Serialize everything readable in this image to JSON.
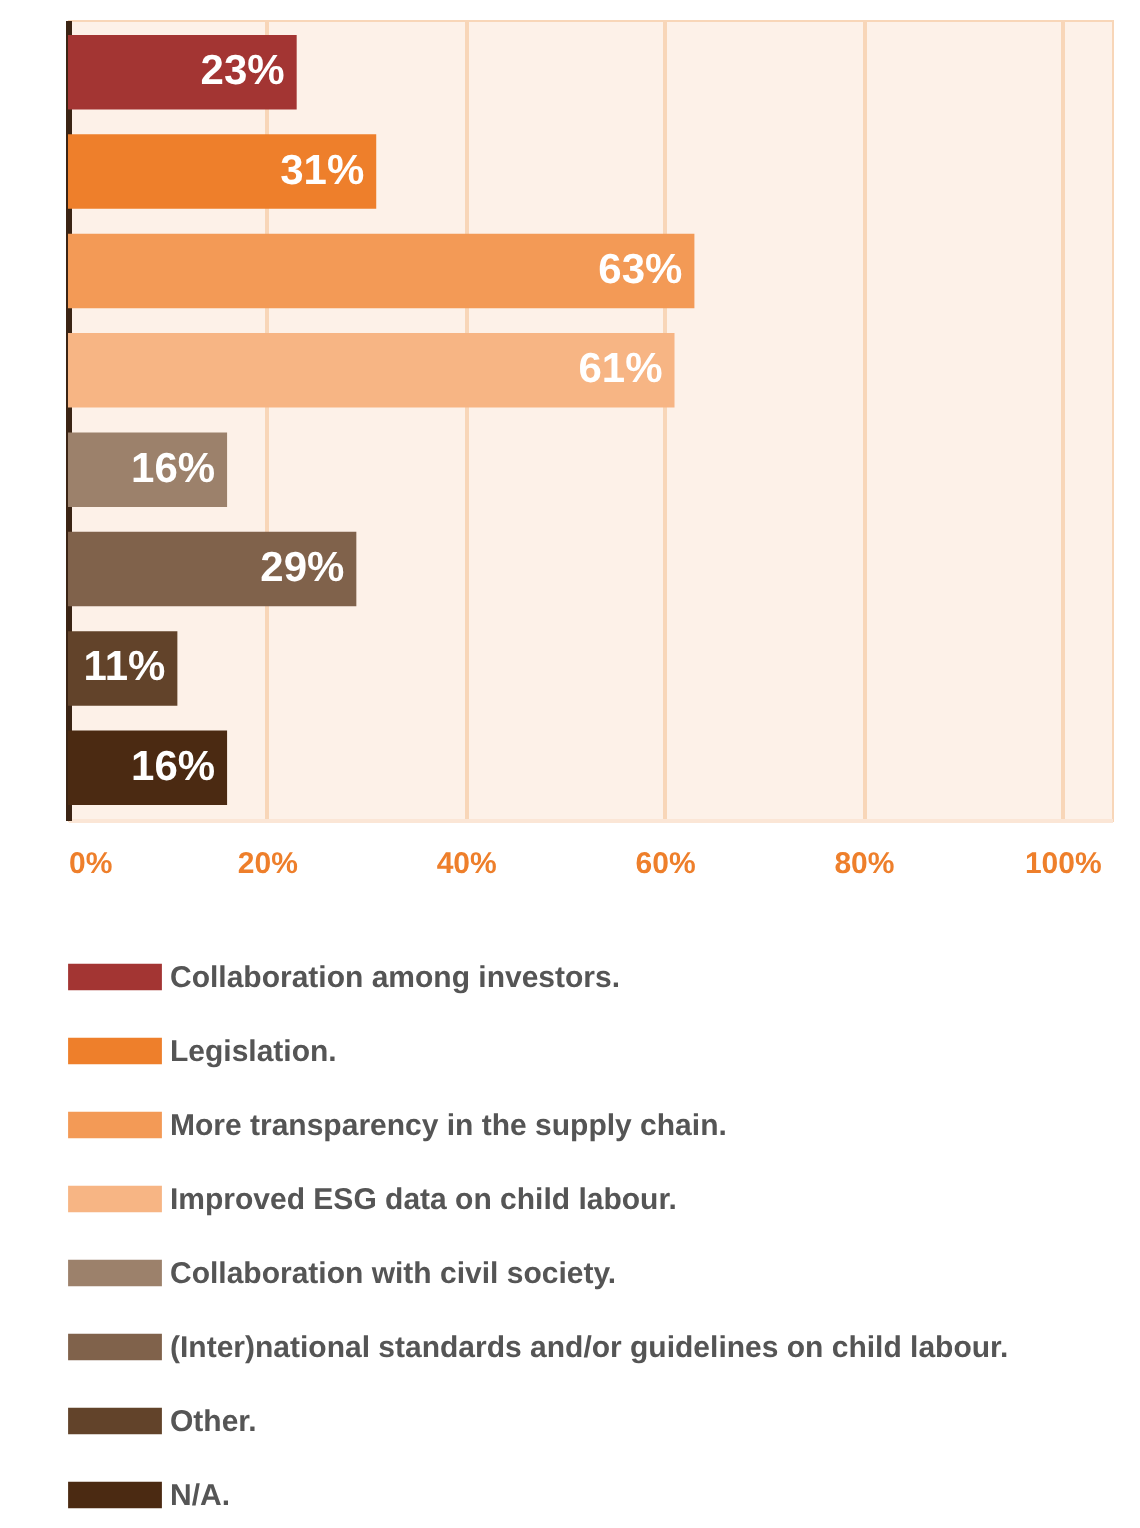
{
  "chart_data": {
    "type": "bar",
    "orientation": "horizontal",
    "categories": [
      null,
      null,
      null,
      null,
      null,
      null,
      null,
      null
    ],
    "series": [
      {
        "name": "Collaboration among investors.",
        "color": "#a33533",
        "values": [
          23,
          null,
          null,
          null,
          null,
          null,
          null,
          null
        ],
        "value_labels": [
          "23%",
          null,
          null,
          null,
          null,
          null,
          null,
          null
        ]
      },
      {
        "name": "Legislation.",
        "color": "#ee7f2b",
        "values": [
          null,
          31,
          null,
          null,
          null,
          null,
          null,
          null
        ],
        "value_labels": [
          null,
          "31%",
          null,
          null,
          null,
          null,
          null,
          null
        ]
      },
      {
        "name": "More transparency in the supply chain.",
        "color": "#f39a56",
        "values": [
          null,
          null,
          63,
          null,
          null,
          null,
          null,
          null
        ],
        "value_labels": [
          null,
          null,
          "63%",
          null,
          null,
          null,
          null,
          null
        ]
      },
      {
        "name": "Improved ESG data on child labour.",
        "color": "#f7b584",
        "values": [
          null,
          null,
          null,
          61,
          null,
          null,
          null,
          null
        ],
        "value_labels": [
          null,
          null,
          null,
          "61%",
          null,
          null,
          null,
          null
        ]
      },
      {
        "name": "Collaboration with civil society.",
        "color": "#9c816b",
        "values": [
          null,
          null,
          null,
          null,
          16,
          null,
          null,
          null
        ],
        "value_labels": [
          null,
          null,
          null,
          null,
          "16%",
          null,
          null,
          null
        ]
      },
      {
        "name": "(Inter)national standards and/or guidelines on child labour.",
        "color": "#80624b",
        "values": [
          null,
          null,
          null,
          null,
          null,
          29,
          null,
          null
        ],
        "value_labels": [
          null,
          null,
          null,
          null,
          null,
          "29%",
          null,
          null
        ]
      },
      {
        "name": "Other.",
        "color": "#62432a",
        "values": [
          null,
          null,
          null,
          null,
          null,
          null,
          11,
          null
        ],
        "value_labels": [
          null,
          null,
          null,
          null,
          null,
          null,
          "11%",
          null
        ]
      },
      {
        "name": "N/A.",
        "color": "#4b2a12",
        "values": [
          null,
          null,
          null,
          null,
          null,
          null,
          null,
          16
        ],
        "value_labels": [
          null,
          null,
          null,
          null,
          null,
          null,
          null,
          "16%"
        ]
      }
    ],
    "xlim": [
      0,
      105
    ],
    "xticks": [
      {
        "value": 0,
        "label": "0%"
      },
      {
        "value": 20,
        "label": "20%"
      },
      {
        "value": 40,
        "label": "40%"
      },
      {
        "value": 60,
        "label": "60%"
      },
      {
        "value": 80,
        "label": "80%"
      },
      {
        "value": 100,
        "label": "100%"
      }
    ],
    "grid": "x",
    "legend": "bottom",
    "tick_labels": "x"
  }
}
